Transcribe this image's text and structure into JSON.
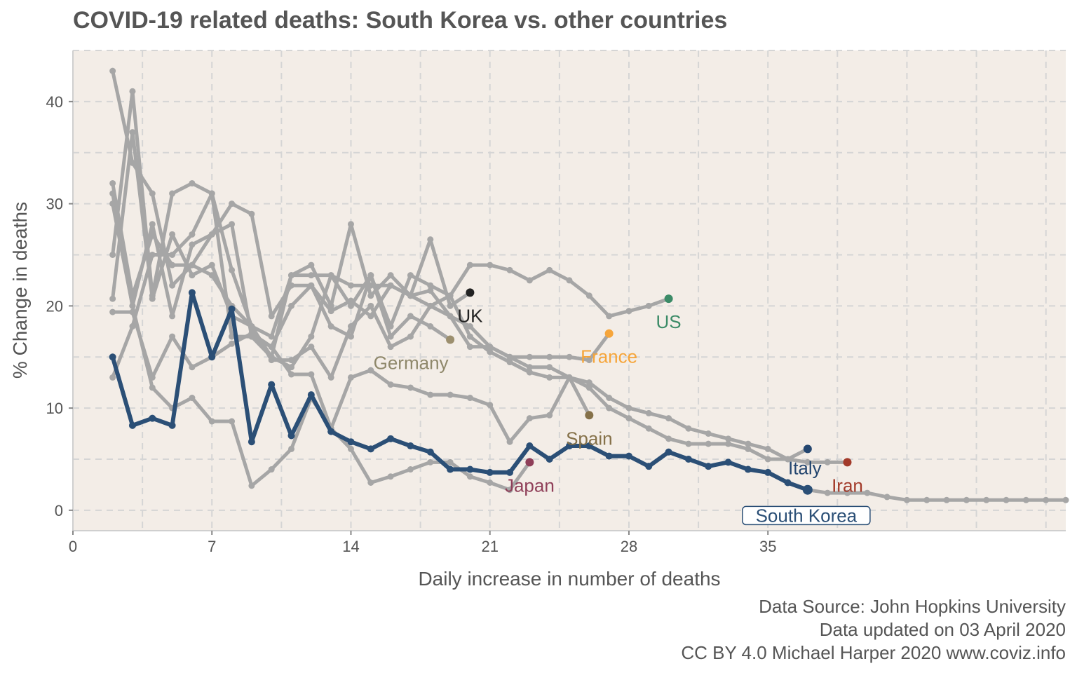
{
  "chart_data": {
    "type": "line",
    "title": "COVID-19 related deaths: South Korea vs. other countries",
    "xlabel": "Daily increase in number of deaths",
    "ylabel": "% Change in deaths",
    "xlim": [
      0,
      50
    ],
    "ylim": [
      -2,
      45
    ],
    "x_ticks": [
      0,
      7,
      14,
      21,
      28,
      35
    ],
    "y_ticks": [
      0,
      10,
      20,
      30,
      40
    ],
    "grid": true,
    "colors": {
      "background": "#f3ede7",
      "grid": "#d5d5d5",
      "other": "#a6a6a6",
      "highlight": "#2b4f76",
      "text": "#555555"
    },
    "series": [
      {
        "name": "Italy",
        "color": "#24466f",
        "label_color": "#24466f",
        "x": [
          2,
          3,
          4,
          5,
          6,
          7,
          8,
          9,
          10,
          11,
          12,
          13,
          14,
          15,
          16,
          17,
          18,
          19,
          20,
          21,
          22,
          23,
          24,
          25,
          26,
          27,
          28,
          29,
          30,
          31,
          32,
          33,
          34,
          35,
          36,
          37
        ],
        "y": [
          31,
          20,
          28,
          19,
          26,
          27,
          30,
          29,
          19,
          22,
          22,
          18,
          17,
          23,
          18,
          23,
          22,
          21,
          17,
          15.5,
          14.5,
          13.5,
          13,
          13,
          12,
          10,
          9,
          8,
          7,
          6.5,
          6.5,
          6.5,
          6,
          5,
          5,
          6
        ]
      },
      {
        "name": "Iran",
        "color": "#a23a2a",
        "label_color": "#a23a2a",
        "x": [
          2,
          3,
          4,
          5,
          6,
          7,
          8,
          9,
          10,
          11,
          12,
          13,
          14,
          15,
          16,
          17,
          18,
          19,
          20,
          21,
          22,
          23,
          24,
          25,
          26,
          27,
          28,
          29,
          30,
          31,
          32,
          33,
          34,
          35,
          36,
          37,
          38,
          39
        ],
        "y": [
          25,
          41,
          21,
          31,
          32,
          31,
          17,
          17,
          16,
          20,
          22,
          19.5,
          20.5,
          19,
          22,
          21,
          21.5,
          19,
          18,
          16,
          15,
          14,
          14,
          13,
          12.5,
          11,
          10,
          9.5,
          9,
          8,
          7.5,
          7,
          6.5,
          6,
          5,
          4.7,
          4.7,
          4.7
        ]
      },
      {
        "name": "US",
        "color": "#3b8b67",
        "label_color": "#3b8b67",
        "x": [
          2,
          3,
          4,
          5,
          6,
          7,
          8,
          9,
          10,
          11,
          12,
          13,
          14,
          15,
          16,
          17,
          18,
          19,
          20,
          21,
          22,
          23,
          24,
          25,
          26,
          27,
          28,
          29,
          30
        ],
        "y": [
          43,
          34,
          31,
          22,
          24,
          23,
          20,
          18,
          17,
          23,
          23,
          23,
          22,
          22,
          22,
          21,
          20,
          21,
          24,
          24,
          23.5,
          22.5,
          23.5,
          22.5,
          21,
          19,
          19.5,
          20,
          20.7
        ]
      },
      {
        "name": "UK",
        "color": "#222222",
        "label_color": "#222222",
        "x": [
          2,
          3,
          4,
          5,
          6,
          7,
          8,
          9,
          10,
          11,
          12,
          13,
          14,
          15,
          16,
          17,
          18,
          19,
          20
        ],
        "y": [
          32,
          21,
          27,
          24,
          24,
          27,
          28,
          17,
          15,
          23,
          24,
          20,
          28,
          21,
          23,
          21,
          26.5,
          20,
          21.3
        ]
      },
      {
        "name": "Germany",
        "color": "#9c8f6e",
        "label_color": "#8f886b",
        "x": [
          2,
          3,
          4,
          5,
          6,
          7,
          8,
          9,
          10,
          11,
          12,
          13,
          14,
          15,
          16,
          17,
          18,
          19
        ],
        "y": [
          13,
          18,
          25,
          25,
          27,
          31,
          23.5,
          18,
          15,
          14,
          17,
          23,
          20,
          23,
          17,
          19,
          18,
          16.7
        ]
      },
      {
        "name": "France",
        "color": "#f6a53a",
        "label_color": "#f6a53a",
        "x": [
          2,
          3,
          4,
          5,
          6,
          7,
          8,
          9,
          10,
          11,
          12,
          13,
          14,
          15,
          16,
          17,
          18,
          19,
          20,
          21,
          22,
          23,
          24,
          25,
          26,
          27
        ],
        "y": [
          20.7,
          37,
          20.7,
          27,
          23,
          24,
          19,
          18,
          14.7,
          14.7,
          16,
          13,
          18,
          20,
          16,
          17,
          20,
          19,
          16,
          16,
          15,
          15,
          15,
          15,
          14.7,
          17.3
        ]
      },
      {
        "name": "Spain",
        "color": "#857149",
        "label_color": "#857149",
        "x": [
          2,
          3,
          4,
          5,
          6,
          7,
          8,
          9,
          10,
          11,
          12,
          13,
          14,
          15,
          16,
          17,
          18,
          19,
          20,
          21,
          22,
          23,
          24,
          25,
          26
        ],
        "y": [
          30,
          20,
          12,
          10,
          11,
          8.7,
          8.7,
          2.4,
          4,
          6,
          11,
          8,
          13,
          13.7,
          12.3,
          12,
          11.3,
          11.3,
          11,
          10.3,
          6.7,
          9,
          9.3,
          13,
          9.3
        ]
      },
      {
        "name": "Japan",
        "color": "#8f3f59",
        "label_color": "#8f3f59",
        "x": [
          2,
          3,
          4,
          5,
          6,
          7,
          8,
          9,
          10,
          11,
          12,
          13,
          14,
          15,
          16,
          17,
          18,
          19,
          20,
          21,
          22,
          23
        ],
        "y": [
          19.4,
          19.4,
          13,
          17,
          14,
          15,
          16.3,
          17.3,
          16,
          13.3,
          13.3,
          8,
          6,
          2.7,
          3.3,
          4,
          4.7,
          4.7,
          3.3,
          2.7,
          2,
          4.7
        ]
      },
      {
        "name": "South Korea",
        "color": "#2b4f76",
        "label_color": "#2b4f76",
        "highlight": true,
        "tail_color": "#a6a6a6",
        "x": [
          2,
          3,
          4,
          5,
          6,
          7,
          8,
          9,
          10,
          11,
          12,
          13,
          14,
          15,
          16,
          17,
          18,
          19,
          20,
          21,
          22,
          23,
          24,
          25,
          26,
          27,
          28,
          29,
          30,
          31,
          32,
          33,
          34,
          35,
          36,
          37,
          38,
          39,
          40,
          41,
          42,
          43,
          44,
          45,
          46,
          47,
          48,
          49,
          50
        ],
        "y": [
          15,
          8.3,
          9,
          8.3,
          21.3,
          15,
          19.7,
          6.7,
          12.3,
          7.3,
          11.3,
          7.7,
          6.7,
          6,
          7,
          6.3,
          5.7,
          4,
          4,
          3.7,
          3.7,
          6.3,
          5,
          6.3,
          6.3,
          5.3,
          5.3,
          4.3,
          5.7,
          5,
          4.3,
          4.7,
          4,
          3.7,
          2.7,
          2,
          1.7,
          1.7,
          1.7,
          1.3,
          1,
          1,
          1,
          1,
          1,
          1,
          1,
          1,
          1
        ]
      }
    ]
  },
  "captions": {
    "source": "Data Source: John Hopkins University",
    "updated": "Data updated on 03 April 2020",
    "license": "CC BY 4.0 Michael Harper 2020 www.coviz.info"
  }
}
